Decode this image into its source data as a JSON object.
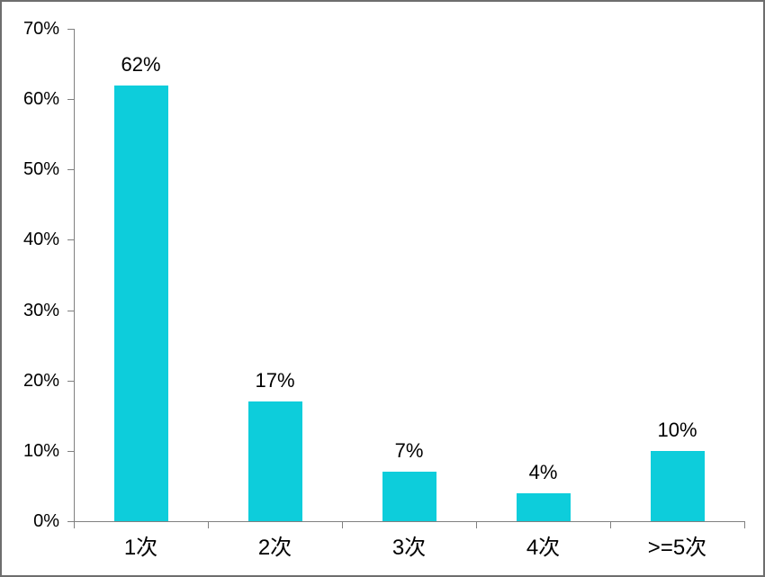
{
  "chart_data": {
    "type": "bar",
    "categories": [
      "1次",
      "2次",
      "3次",
      "4次",
      ">=5次"
    ],
    "values": [
      62,
      17,
      7,
      4,
      10
    ],
    "value_labels": [
      "62%",
      "17%",
      "7%",
      "4%",
      "10%"
    ],
    "title": "",
    "xlabel": "",
    "ylabel": "",
    "ylim": [
      0,
      70
    ],
    "y_ticks": [
      "0%",
      "10%",
      "20%",
      "30%",
      "40%",
      "50%",
      "60%",
      "70%"
    ],
    "grid": false,
    "legend": false,
    "colors": {
      "bar": "#0dcddb",
      "axis": "#808080",
      "text": "#000000",
      "frame_border": "#6e6e6e",
      "background": "#ffffff"
    }
  }
}
